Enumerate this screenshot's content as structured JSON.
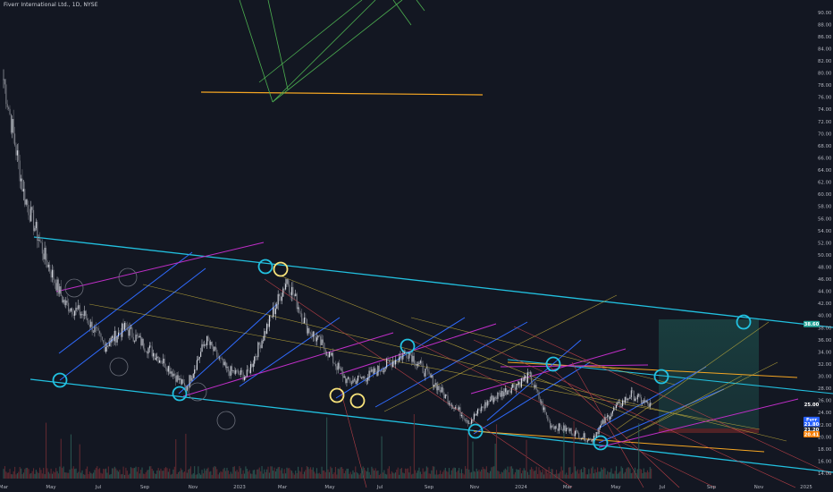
{
  "header": {
    "title": "Fiverr International Ltd., 1D, NYSE"
  },
  "chart_data": {
    "type": "candlestick",
    "title": "Fiverr International Ltd., 1D, NYSE",
    "ylim": [
      14,
      91
    ],
    "y_ticks": [
      "14.00",
      "16.00",
      "18.00",
      "20.00",
      "22.00",
      "24.00",
      "26.00",
      "28.00",
      "30.00",
      "32.00",
      "34.00",
      "36.00",
      "38.00",
      "40.00",
      "42.00",
      "44.00",
      "46.00",
      "48.00",
      "50.00",
      "52.00",
      "54.00",
      "56.00",
      "58.00",
      "60.00",
      "62.00",
      "64.00",
      "66.00",
      "68.00",
      "70.00",
      "72.00",
      "74.00",
      "76.00",
      "78.00",
      "80.00",
      "82.00",
      "84.00",
      "86.00",
      "88.00",
      "90.00"
    ],
    "x_ticks": [
      "Mar",
      "May",
      "Jul",
      "Sep",
      "Nov",
      "2023",
      "Mar",
      "May",
      "Jul",
      "Sep",
      "Nov",
      "2024",
      "Mar",
      "May",
      "Jul",
      "Sep",
      "Nov",
      "2025"
    ],
    "price_points": [
      [
        "Mar",
        79
      ],
      [
        "Apr",
        60
      ],
      [
        "Apr",
        50
      ],
      [
        "May",
        42
      ],
      [
        "Jun",
        40
      ],
      [
        "Jul",
        35
      ],
      [
        "Aug",
        38
      ],
      [
        "Sep",
        35
      ],
      [
        "Oct",
        32
      ],
      [
        "Nov",
        28
      ],
      [
        "Nov",
        36
      ],
      [
        "Dec",
        31
      ],
      [
        "Jan",
        30
      ],
      [
        "Feb",
        38
      ],
      [
        "Feb",
        46
      ],
      [
        "Mar",
        38
      ],
      [
        "Apr",
        34
      ],
      [
        "May",
        29
      ],
      [
        "Jun",
        30
      ],
      [
        "Jul",
        32
      ],
      [
        "Aug",
        34
      ],
      [
        "Sep",
        30
      ],
      [
        "Oct",
        26
      ],
      [
        "Nov",
        22.5
      ],
      [
        "Dec",
        26
      ],
      [
        "Jan",
        28
      ],
      [
        "Feb",
        30
      ],
      [
        "Mar",
        22
      ],
      [
        "Apr",
        21
      ],
      [
        "May",
        19.5
      ],
      [
        "Jun",
        24
      ],
      [
        "Jul",
        27
      ],
      [
        "Jul",
        25
      ]
    ],
    "price_badges": [
      {
        "label": "38.60",
        "color": "#26a69a",
        "value": 38.6
      },
      {
        "label": "25.00",
        "color": "#1e222d",
        "value": 25.3
      },
      {
        "label": "Fvrr",
        "color": "#2962ff",
        "value": 22.8
      },
      {
        "label": "21.80",
        "color": "#2962ff",
        "value": 22.1
      },
      {
        "label": "21.20",
        "color": "#2a2e39",
        "value": 21.2
      },
      {
        "label": "20.41",
        "color": "#f57c00",
        "value": 20.41
      }
    ],
    "grid": false,
    "legend": "none"
  }
}
